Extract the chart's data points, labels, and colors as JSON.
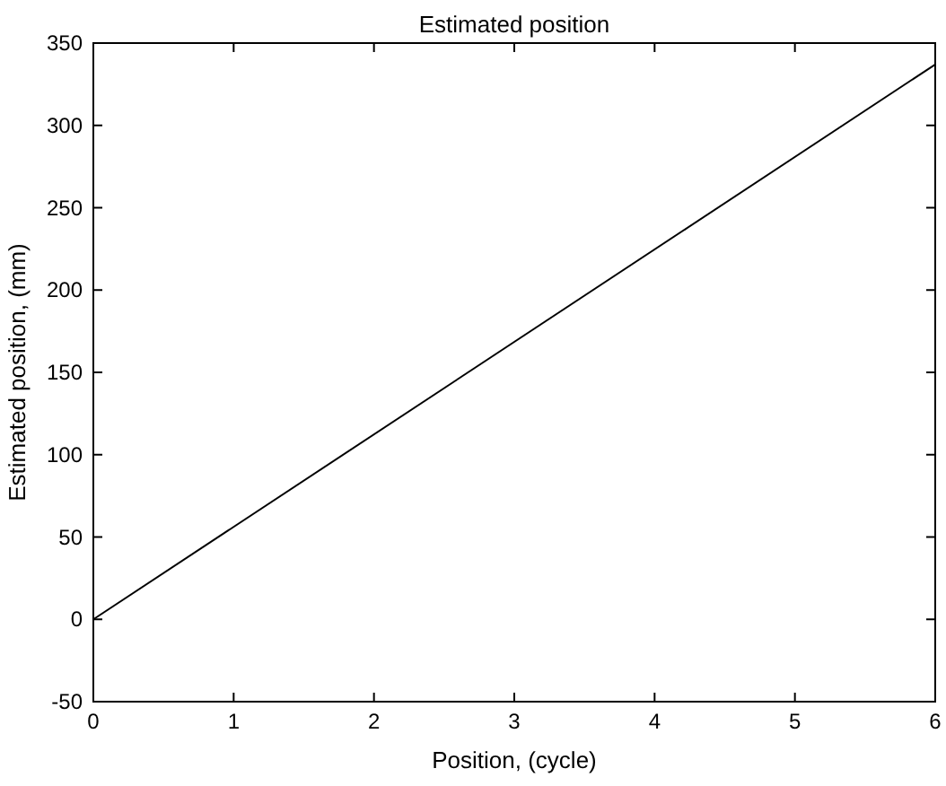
{
  "chart_data": {
    "type": "line",
    "title": "Estimated position",
    "xlabel": "Position, (cycle)",
    "ylabel": "Estimated position, (mm)",
    "x": [
      0,
      6
    ],
    "series": [
      {
        "color": "#000000",
        "values": [
          0,
          337
        ]
      }
    ],
    "xlim": [
      0,
      6
    ],
    "xticks": [
      0,
      1,
      2,
      3,
      4,
      5,
      6
    ],
    "ylim": [
      -50,
      350
    ],
    "yticks": [
      -50,
      0,
      50,
      100,
      150,
      200,
      250,
      300,
      350
    ],
    "grid": false,
    "marker": "none",
    "line_style": "solid"
  }
}
